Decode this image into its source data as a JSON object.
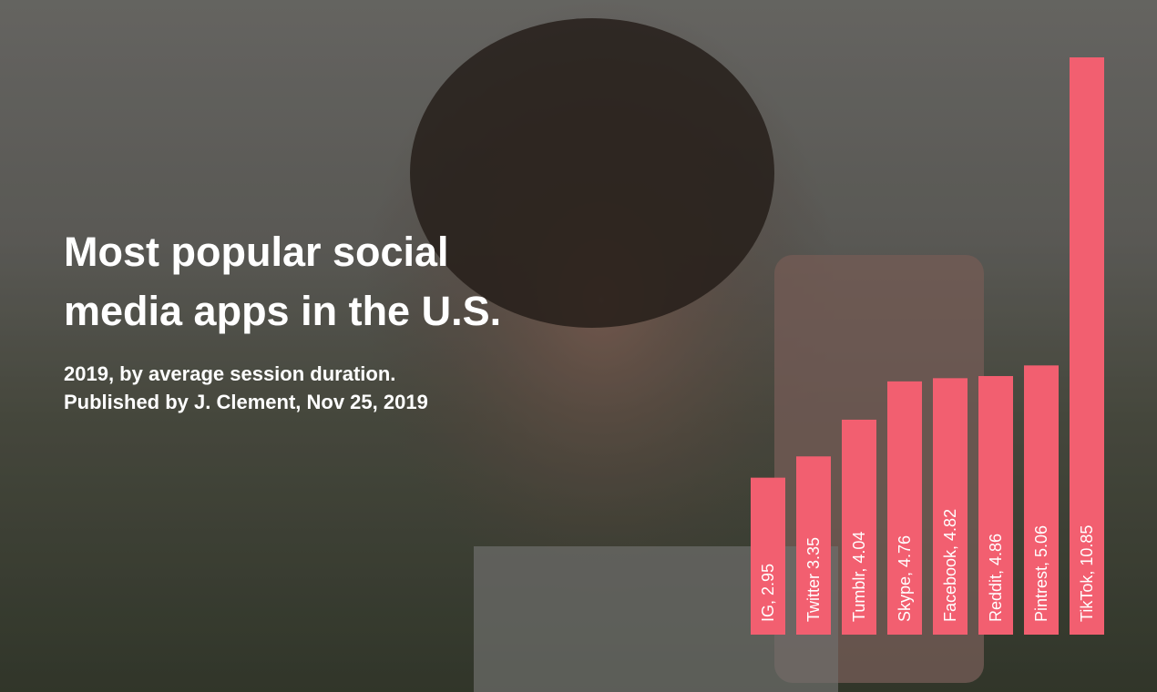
{
  "chart_data": {
    "type": "bar",
    "title": "Most popular social media apps in the U.S.",
    "subtitle": "2019, by average session duration.",
    "source": "Published by J. Clement, Nov 25, 2019",
    "value_labels": [
      "IG, 2.95",
      "Twitter 3.35",
      "Tumblr, 4.04",
      "Skype, 4.76",
      "Facebook, 4.82",
      "Reddit, 4.86",
      "Pintrest, 5.06",
      "TikTok, 10.85"
    ],
    "values": [
      2.95,
      3.35,
      4.04,
      4.76,
      4.82,
      4.86,
      5.06,
      10.85
    ],
    "color": "#f25f70",
    "ylim": [
      0,
      10.85
    ]
  }
}
